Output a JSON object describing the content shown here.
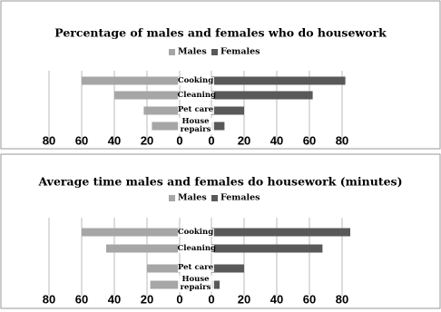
{
  "chart_data": [
    {
      "type": "butterfly-bar",
      "title": "Percentage of males and females who do housework",
      "categories": [
        "Cooking",
        "Cleaning",
        "Pet care",
        "House repairs"
      ],
      "series": [
        {
          "name": "Males",
          "color": "#a6a6a6",
          "values": [
            60,
            40,
            22,
            17
          ]
        },
        {
          "name": "Females",
          "color": "#595959",
          "values": [
            82,
            62,
            20,
            8
          ]
        }
      ],
      "xlim": [
        0,
        90
      ],
      "xticks": [
        0,
        20,
        40,
        60,
        80
      ],
      "grid": true
    },
    {
      "type": "butterfly-bar",
      "title": "Average time males and females do housework (minutes)",
      "categories": [
        "Cooking",
        "Cleaning",
        "Pet care",
        "House repairs"
      ],
      "series": [
        {
          "name": "Males",
          "color": "#a6a6a6",
          "values": [
            60,
            45,
            20,
            18
          ]
        },
        {
          "name": "Females",
          "color": "#595959",
          "values": [
            85,
            68,
            20,
            5
          ]
        }
      ],
      "xlim": [
        0,
        90
      ],
      "xticks": [
        0,
        20,
        40,
        60,
        80
      ],
      "grid": true
    }
  ]
}
